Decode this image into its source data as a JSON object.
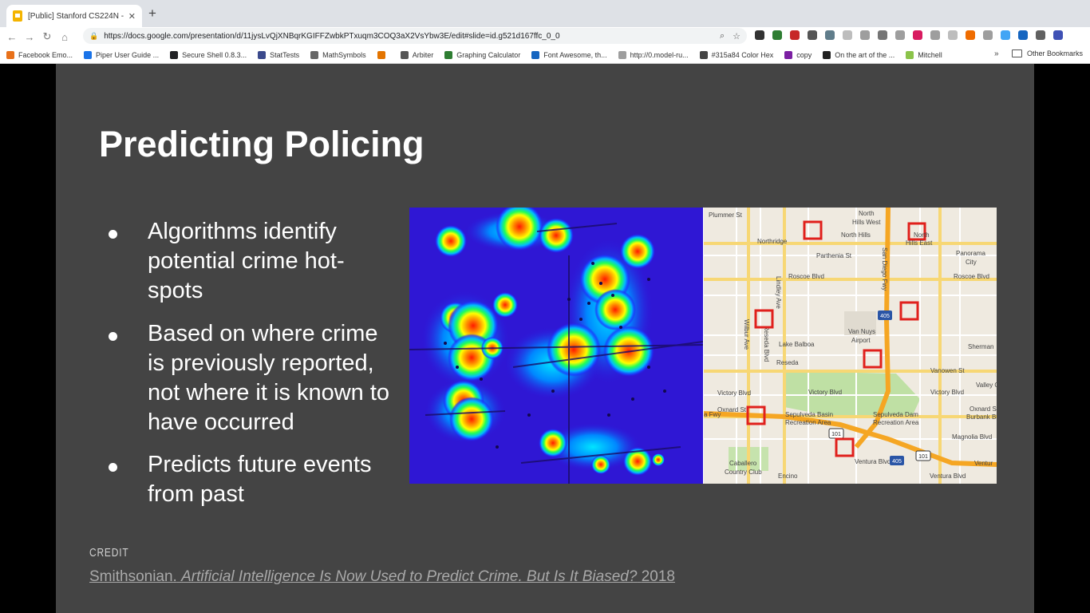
{
  "browser": {
    "tab_title": "[Public] Stanford CS224N - Go",
    "url": "https://docs.google.com/presentation/d/11jysLvQjXNBqrKGIFFZwbkPTxuqm3COQ3aX2VsYbw3E/edit#slide=id.g521d167ffc_0_0",
    "bookmarks": [
      {
        "label": "Facebook Emo...",
        "color": "#e8711a"
      },
      {
        "label": "Piper User Guide ...",
        "color": "#1a73e8"
      },
      {
        "label": "Secure Shell 0.8.3...",
        "color": "#202124"
      },
      {
        "label": "StatTests",
        "color": "#3b4a8c"
      },
      {
        "label": "MathSymbols",
        "color": "#666666"
      },
      {
        "label": "",
        "color": "#e37400"
      },
      {
        "label": "Arbiter",
        "color": "#555555"
      },
      {
        "label": "Graphing Calculator",
        "color": "#2e7d32"
      },
      {
        "label": "Font Awesome, th...",
        "color": "#1565c0"
      },
      {
        "label": "http://0.model-ru...",
        "color": "#9e9e9e"
      },
      {
        "label": "#315a84 Color Hex",
        "color": "#444444"
      },
      {
        "label": "copy",
        "color": "#7b1fa2"
      },
      {
        "label": "On the art of the ...",
        "color": "#212121"
      },
      {
        "label": "Mitchell",
        "color": "#8bc34a"
      }
    ],
    "bookmarks_more": "»",
    "other_bookmarks": "Other Bookmarks",
    "extension_colors": [
      "#333333",
      "#2e7d32",
      "#c62828",
      "#555555",
      "#607d8b",
      "#bdbdbd",
      "#9e9e9e",
      "#757575",
      "#9e9e9e",
      "#d81b60",
      "#9e9e9e",
      "#bdbdbd",
      "#ef6c00",
      "#9e9e9e",
      "#42a5f5",
      "#1565c0",
      "#616161",
      "#3f51b5"
    ]
  },
  "slide": {
    "title": "Predicting Policing",
    "bullets": [
      "Algorithms identify potential crime hot-spots",
      "Based on where crime is previously reported, not where it is known to have occurred",
      "Predicts future events from past"
    ],
    "credit_label": "Credit",
    "citation": {
      "source": "Smithsonian.",
      "title": "Artificial Intelligence Is Now Used to Predict Crime. But Is It Biased?",
      "year": "2018"
    },
    "map_labels": {
      "plummer": "Plummer St",
      "north_hills": "North",
      "north_hills_west": "Hills West",
      "north_hills2": "North Hills",
      "north": "North",
      "hills_east": "Hills East",
      "northridge": "Northridge",
      "parthenia": "Parthenia St",
      "panorama": "Panorama",
      "city": "City",
      "roscoe1": "Roscoe Blvd",
      "roscoe2": "Roscoe Blvd",
      "sandiego": "San Diego Fwy",
      "lindley": "Lindley Ave",
      "vannuys": "Van Nuys",
      "airport": "Airport",
      "lakebalboa": "Lake Balboa",
      "reseda": "Reseda",
      "willow": "Wilbur Ave",
      "resedablvd": "Reseda Blvd",
      "sherman": "Sherman",
      "vanowen": "Vanowen St",
      "victory1": "Victory Blvd",
      "victory2": "Victory Blvd",
      "victory3": "Victory Blvd",
      "valleyg": "Valley G",
      "oxnard1": "Oxnard St",
      "oxnard2": "Oxnard St",
      "sepbasin": "Sepulveda Basin",
      "recarea1": "Recreation Area",
      "sepdam": "Sepulveda Dam",
      "recarea2": "Recreation Area",
      "burbank": "Burbank Blvd",
      "fwy": "a Fwy",
      "magnolia": "Magnolia Blvd",
      "ventura1": "Ventura Blvd",
      "ventura2": "Ventura Blvd",
      "ventura3": "Ventur",
      "caballero": "Caballero",
      "country": "Country Club",
      "encino": "Encino",
      "r405a": "405",
      "r405b": "405",
      "r101a": "101",
      "r101b": "101"
    }
  }
}
